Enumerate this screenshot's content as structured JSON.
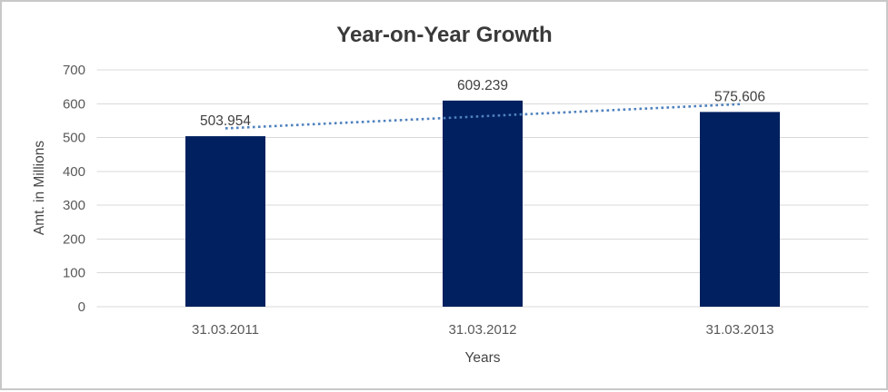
{
  "chart_data": {
    "type": "bar",
    "title": "Year-on-Year Growth",
    "categories": [
      "31.03.2011",
      "31.03.2012",
      "31.03.2013"
    ],
    "values": [
      503.954,
      609.239,
      575.606
    ],
    "data_labels": [
      "503.954",
      "609.239",
      "575.606"
    ],
    "xlabel": "Years",
    "ylabel": "Amt. in Millions",
    "ylim": [
      0,
      700
    ],
    "yticks": [
      0,
      100,
      200,
      300,
      400,
      500,
      600,
      700
    ],
    "grid": true,
    "legend": "none",
    "trendline": {
      "type": "linear",
      "style": "dotted"
    },
    "colors": {
      "bar": "#002060",
      "trendline": "#4f81bd",
      "gridline": "#d9d9d9",
      "title": "#3a3a3a",
      "axis_title": "#454545",
      "tick_label": "#595959",
      "data_label": "#404040",
      "frame_border": "#c8c8c8",
      "background": "#ffffff"
    }
  }
}
